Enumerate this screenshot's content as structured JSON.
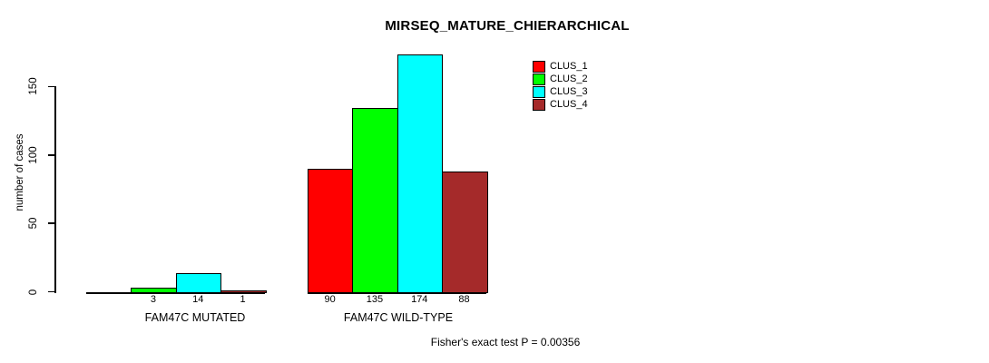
{
  "chart_data": {
    "type": "bar",
    "title": "MIRSEQ_MATURE_CHIERARCHICAL",
    "xlabel": "",
    "ylabel": "number of cases",
    "yticks": [
      0,
      50,
      100,
      150
    ],
    "ylim": [
      0,
      175
    ],
    "grid": false,
    "legend_position": "top-right",
    "categories": [
      "FAM47C MUTATED",
      "FAM47C WILD-TYPE"
    ],
    "series": [
      {
        "name": "CLUS_1",
        "color": "#FF0000",
        "values": [
          0,
          90
        ]
      },
      {
        "name": "CLUS_2",
        "color": "#00FF00",
        "values": [
          3,
          135
        ]
      },
      {
        "name": "CLUS_3",
        "color": "#00FFFF",
        "values": [
          14,
          174
        ]
      },
      {
        "name": "CLUS_4",
        "color": "#A52A2A",
        "values": [
          1,
          88
        ]
      }
    ],
    "bar_value_labels": [
      [
        "",
        "3",
        "14",
        "1"
      ],
      [
        "90",
        "135",
        "174",
        "88"
      ]
    ],
    "annotation": "Fisher's exact test P = 0.00356"
  }
}
